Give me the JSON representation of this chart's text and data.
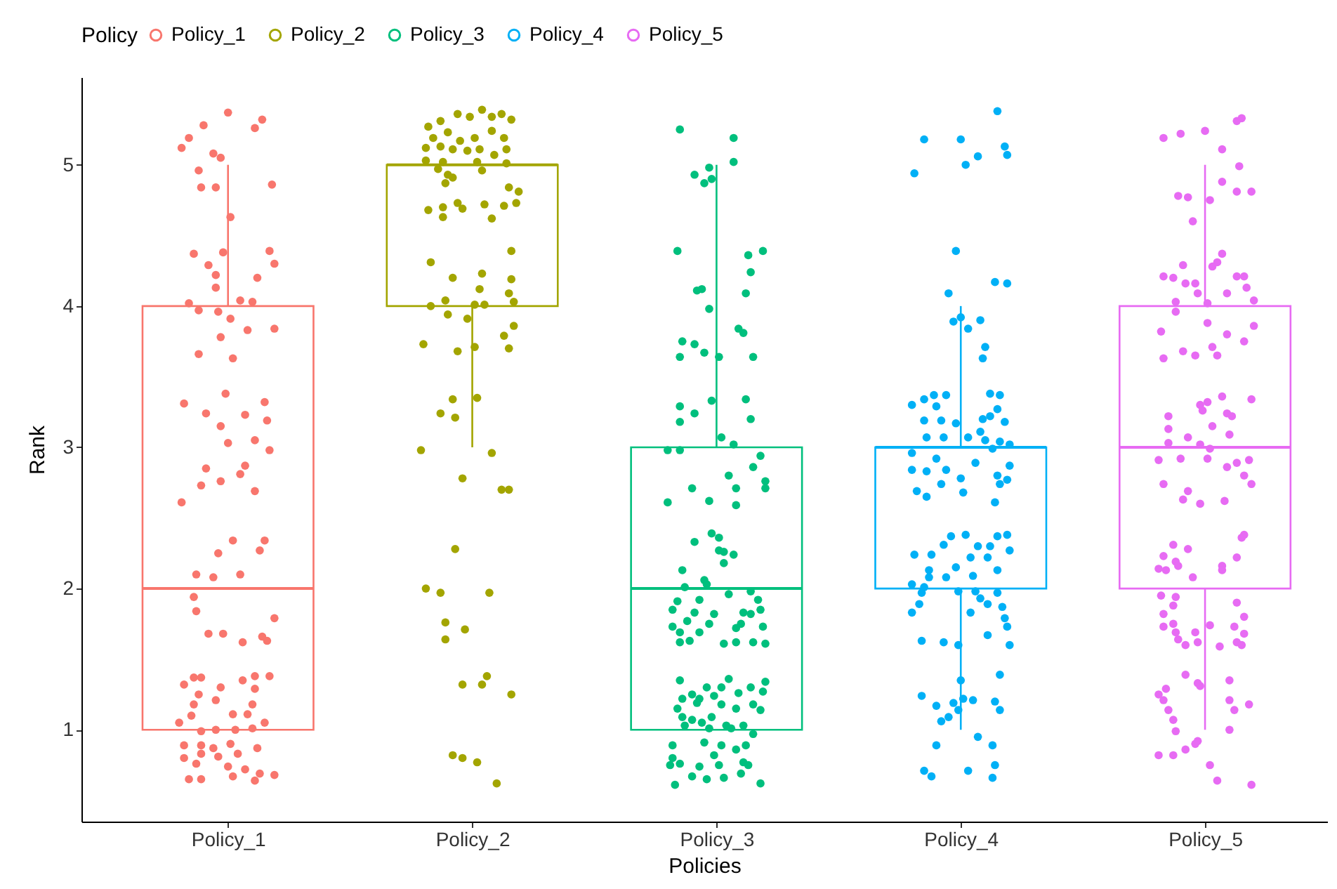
{
  "chart_data": {
    "type": "box",
    "xlabel": "Policies",
    "ylabel": "Rank",
    "legend_title": "Policy",
    "legend": "top",
    "marker": "circle",
    "xlim": [
      0.4,
      5.5
    ],
    "xticks": [
      {
        "value": 1,
        "label": "Policy_1"
      },
      {
        "value": 2,
        "label": "Policy_2"
      },
      {
        "value": 3,
        "label": "Policy_3"
      },
      {
        "value": 4,
        "label": "Policy_4"
      },
      {
        "value": 5,
        "label": "Policy_5"
      }
    ],
    "ylim": [
      0.35,
      5.62
    ],
    "yticks": [
      1,
      2,
      3,
      4,
      5
    ],
    "series": [
      {
        "name": "Policy_1",
        "color": "#f8766d",
        "x": [
          1
        ],
        "boxes": [
          {
            "low": 1,
            "q1": 1,
            "median": 2,
            "q3": 4,
            "high": 5
          }
        ]
      },
      {
        "name": "Policy_2",
        "color": "#a3a500",
        "x": [
          2
        ],
        "boxes": [
          {
            "low": 3,
            "q1": 4,
            "median": 5,
            "q3": 5,
            "high": 5
          }
        ]
      },
      {
        "name": "Policy_3",
        "color": "#00bf7d",
        "x": [
          3
        ],
        "boxes": [
          {
            "low": 1,
            "q1": 1,
            "median": 2,
            "q3": 3,
            "high": 5
          }
        ]
      },
      {
        "name": "Policy_4",
        "color": "#00b0f6",
        "x": [
          4
        ],
        "boxes": [
          {
            "low": 1,
            "q1": 2,
            "median": 3,
            "q3": 3,
            "high": 4
          }
        ]
      },
      {
        "name": "Policy_5",
        "color": "#e76bf3",
        "x": [
          5
        ],
        "boxes": [
          {
            "low": 1,
            "q1": 2,
            "median": 3,
            "q3": 4,
            "high": 5
          }
        ]
      },
      {
        "type": "scatter",
        "color": "#f8766d",
        "x": [
          1.0,
          0.9,
          1.14,
          1.11,
          0.84,
          0.81,
          0.94,
          0.97,
          0.88,
          1.18,
          0.89,
          0.95,
          1.01,
          0.86,
          0.98,
          1.17,
          1.19,
          0.92,
          0.95,
          1.12,
          0.95,
          0.84,
          1.05,
          1.1,
          0.88,
          0.96,
          1.01,
          1.08,
          1.19,
          0.97,
          0.88,
          1.02,
          0.99,
          0.82,
          1.15,
          0.91,
          1.07,
          1.16,
          0.97,
          1.0,
          1.11,
          1.17,
          0.91,
          1.07,
          1.05,
          0.97,
          0.89,
          1.11,
          0.81,
          1.02,
          1.15,
          0.96,
          1.13,
          0.87,
          0.94,
          1.05,
          0.86,
          0.87,
          1.19,
          0.92,
          0.98,
          1.06,
          1.14,
          1.16,
          0.86,
          0.89,
          0.82,
          0.97,
          1.06,
          1.11,
          1.17,
          0.88,
          1.11,
          0.95,
          0.86,
          1.1,
          1.02,
          1.08,
          0.85,
          0.8,
          1.15,
          0.89,
          0.95,
          1.03,
          1.1,
          0.82,
          0.89,
          1.01,
          1.12,
          0.94,
          0.89,
          1.04,
          0.82,
          0.96,
          0.87,
          1.0,
          0.84,
          0.89,
          1.02,
          1.07,
          1.13,
          1.19,
          1.11
        ],
        "values": [
          5.37,
          5.28,
          5.32,
          5.26,
          5.19,
          5.12,
          5.08,
          5.05,
          4.96,
          4.86,
          4.84,
          4.84,
          4.63,
          4.37,
          4.38,
          4.39,
          4.3,
          4.29,
          4.22,
          4.2,
          4.13,
          4.02,
          4.04,
          4.03,
          3.97,
          3.96,
          3.91,
          3.83,
          3.84,
          3.78,
          3.66,
          3.63,
          3.38,
          3.31,
          3.32,
          3.24,
          3.23,
          3.19,
          3.15,
          3.03,
          3.05,
          2.98,
          2.85,
          2.87,
          2.81,
          2.76,
          2.73,
          2.69,
          2.61,
          2.34,
          2.34,
          2.25,
          2.27,
          2.1,
          2.08,
          2.1,
          1.94,
          1.84,
          1.79,
          1.68,
          1.68,
          1.62,
          1.66,
          1.63,
          1.37,
          1.37,
          1.32,
          1.3,
          1.35,
          1.38,
          1.38,
          1.25,
          1.29,
          1.21,
          1.18,
          1.18,
          1.11,
          1.11,
          1.1,
          1.05,
          1.05,
          0.99,
          1.0,
          1.0,
          1.01,
          0.89,
          0.89,
          0.9,
          0.87,
          0.87,
          0.83,
          0.83,
          0.8,
          0.81,
          0.76,
          0.74,
          0.65,
          0.65,
          0.67,
          0.72,
          0.69,
          0.68,
          0.64
        ]
      },
      {
        "type": "scatter",
        "color": "#a3a500",
        "x": [
          1.94,
          2.04,
          1.99,
          2.12,
          1.87,
          1.82,
          2.08,
          2.16,
          1.9,
          2.08,
          1.84,
          1.95,
          2.01,
          2.13,
          1.81,
          1.87,
          1.92,
          1.98,
          2.03,
          2.14,
          2.09,
          1.81,
          1.88,
          2.02,
          2.14,
          1.86,
          1.9,
          2.04,
          1.92,
          1.89,
          2.15,
          2.19,
          1.82,
          1.88,
          1.94,
          1.96,
          2.05,
          2.13,
          2.18,
          1.88,
          2.08,
          1.83,
          2.16,
          1.92,
          2.04,
          2.03,
          2.16,
          2.15,
          2.17,
          1.83,
          1.89,
          2.01,
          2.05,
          1.9,
          1.98,
          2.17,
          2.13,
          1.8,
          1.94,
          2.01,
          2.15,
          1.92,
          2.02,
          1.87,
          1.93,
          1.79,
          2.08,
          1.96,
          2.12,
          2.15,
          1.93,
          1.81,
          1.87,
          2.07,
          1.89,
          1.97,
          1.89,
          1.96,
          2.04,
          2.06,
          2.16,
          1.92,
          1.96,
          2.02,
          2.1
        ],
        "values": [
          5.36,
          5.39,
          5.34,
          5.36,
          5.31,
          5.27,
          5.34,
          5.32,
          5.23,
          5.24,
          5.19,
          5.17,
          5.19,
          5.19,
          5.12,
          5.13,
          5.11,
          5.1,
          5.11,
          5.11,
          5.07,
          5.03,
          5.02,
          5.02,
          5.01,
          4.97,
          4.93,
          4.96,
          4.91,
          4.87,
          4.84,
          4.81,
          4.68,
          4.7,
          4.73,
          4.69,
          4.72,
          4.71,
          4.73,
          4.63,
          4.62,
          4.31,
          4.39,
          4.2,
          4.23,
          4.12,
          4.19,
          4.09,
          4.03,
          4.0,
          4.04,
          4.01,
          4.01,
          3.94,
          3.91,
          3.86,
          3.79,
          3.73,
          3.68,
          3.71,
          3.7,
          3.34,
          3.35,
          3.24,
          3.21,
          2.98,
          2.96,
          2.78,
          2.7,
          2.7,
          2.28,
          2.0,
          1.97,
          1.97,
          1.76,
          1.71,
          1.64,
          1.32,
          1.32,
          1.38,
          1.25,
          0.82,
          0.8,
          0.77,
          0.62
        ]
      },
      {
        "type": "scatter",
        "color": "#00bf7d",
        "x": [
          2.85,
          3.07,
          3.07,
          2.91,
          2.97,
          2.95,
          2.98,
          2.84,
          3.13,
          3.19,
          3.14,
          2.92,
          2.94,
          3.12,
          2.97,
          3.09,
          3.11,
          2.86,
          2.91,
          2.85,
          2.95,
          3.01,
          3.15,
          2.85,
          2.91,
          2.85,
          2.98,
          3.12,
          3.14,
          3.02,
          3.07,
          2.8,
          2.85,
          3.18,
          3.15,
          3.05,
          2.9,
          3.08,
          3.2,
          3.2,
          2.8,
          2.97,
          3.08,
          2.98,
          3.01,
          2.91,
          3.01,
          3.03,
          3.07,
          3.03,
          2.86,
          2.95,
          2.87,
          2.96,
          3.14,
          3.05,
          2.84,
          2.93,
          3.17,
          2.82,
          3.11,
          3.18,
          2.91,
          2.99,
          3.14,
          2.88,
          2.97,
          2.82,
          3.1,
          3.19,
          2.85,
          2.93,
          3.08,
          2.85,
          2.89,
          3.03,
          3.08,
          3.15,
          3.2,
          2.85,
          3.05,
          3.2,
          2.96,
          3.02,
          2.9,
          2.86,
          2.93,
          2.99,
          3.09,
          3.14,
          3.19,
          2.84,
          2.92,
          3.02,
          3.08,
          3.15,
          3.18,
          2.86,
          2.9,
          2.98,
          2.87,
          2.94,
          3.04,
          3.11,
          2.97,
          3.06,
          3.15,
          2.82,
          2.95,
          3.02,
          3.08,
          3.12,
          2.99,
          2.82,
          3.01,
          2.81,
          2.85,
          2.93,
          3.11,
          3.13,
          2.9,
          2.96,
          3.03,
          3.1,
          2.83,
          3.18
        ],
        "values": [
          5.25,
          5.19,
          5.02,
          4.93,
          4.98,
          4.87,
          4.9,
          4.39,
          4.36,
          4.39,
          4.24,
          4.11,
          4.12,
          4.09,
          3.98,
          3.84,
          3.81,
          3.75,
          3.73,
          3.64,
          3.67,
          3.64,
          3.64,
          3.29,
          3.24,
          3.18,
          3.33,
          3.34,
          3.2,
          3.07,
          3.02,
          2.98,
          2.98,
          2.94,
          2.86,
          2.8,
          2.71,
          2.71,
          2.76,
          2.71,
          2.61,
          2.62,
          2.59,
          2.39,
          2.36,
          2.33,
          2.27,
          2.26,
          2.24,
          2.18,
          2.13,
          2.06,
          2.01,
          2.03,
          1.98,
          1.96,
          1.91,
          1.92,
          1.92,
          1.85,
          1.83,
          1.85,
          1.83,
          1.82,
          1.82,
          1.77,
          1.75,
          1.73,
          1.75,
          1.73,
          1.69,
          1.69,
          1.72,
          1.62,
          1.63,
          1.61,
          1.62,
          1.62,
          1.61,
          1.35,
          1.36,
          1.34,
          1.3,
          1.3,
          1.25,
          1.22,
          1.22,
          1.24,
          1.26,
          1.3,
          1.27,
          1.15,
          1.19,
          1.18,
          1.15,
          1.18,
          1.14,
          1.09,
          1.07,
          1.09,
          1.03,
          1.05,
          1.03,
          1.03,
          1.01,
          1.01,
          0.97,
          0.89,
          0.91,
          0.89,
          0.86,
          0.89,
          0.82,
          0.8,
          0.75,
          0.75,
          0.76,
          0.74,
          0.77,
          0.75,
          0.67,
          0.65,
          0.66,
          0.69,
          0.61,
          0.62
        ]
      },
      {
        "type": "scatter",
        "color": "#00b0f6",
        "x": [
          4.15,
          3.85,
          4.0,
          4.18,
          4.19,
          4.07,
          4.02,
          3.81,
          3.98,
          4.14,
          4.19,
          3.95,
          4.0,
          3.97,
          4.08,
          4.03,
          4.1,
          4.09,
          3.8,
          3.85,
          3.89,
          3.94,
          4.12,
          4.16,
          3.9,
          4.15,
          3.85,
          3.92,
          3.98,
          4.09,
          4.12,
          4.18,
          3.86,
          3.93,
          4.03,
          4.08,
          4.1,
          4.16,
          4.2,
          4.13,
          3.8,
          3.9,
          3.8,
          3.86,
          3.94,
          4.0,
          4.06,
          4.15,
          4.2,
          4.19,
          3.82,
          3.92,
          4.01,
          4.16,
          3.86,
          4.14,
          3.96,
          4.02,
          4.15,
          4.19,
          3.93,
          4.07,
          4.12,
          3.81,
          3.88,
          4.04,
          4.11,
          4.2,
          3.87,
          3.98,
          4.15,
          3.87,
          3.94,
          4.05,
          3.8,
          3.85,
          3.99,
          4.06,
          4.15,
          3.84,
          4.08,
          3.83,
          4.11,
          4.17,
          3.8,
          4.04,
          4.18,
          4.19,
          4.2,
          3.84,
          3.93,
          3.99,
          4.11,
          4.0,
          4.16,
          3.84,
          3.9,
          3.97,
          4.05,
          4.14,
          4.01,
          3.95,
          3.92,
          3.99,
          4.16,
          4.07,
          3.9,
          4.13,
          3.85,
          3.88,
          4.03,
          4.14,
          4.13
        ],
        "values": [
          5.38,
          5.18,
          5.18,
          5.13,
          5.07,
          5.06,
          5.0,
          4.94,
          4.39,
          4.17,
          4.16,
          4.09,
          3.92,
          3.89,
          3.9,
          3.84,
          3.71,
          3.63,
          3.3,
          3.34,
          3.37,
          3.37,
          3.38,
          3.37,
          3.29,
          3.27,
          3.19,
          3.19,
          3.17,
          3.2,
          3.22,
          3.18,
          3.07,
          3.07,
          3.07,
          3.11,
          3.05,
          3.04,
          3.02,
          2.99,
          2.96,
          2.92,
          2.84,
          2.83,
          2.84,
          2.78,
          2.89,
          2.8,
          2.87,
          2.77,
          2.69,
          2.74,
          2.68,
          2.74,
          2.65,
          2.61,
          2.37,
          2.38,
          2.37,
          2.38,
          2.31,
          2.3,
          2.3,
          2.24,
          2.24,
          2.22,
          2.22,
          2.27,
          2.13,
          2.15,
          2.13,
          2.08,
          2.08,
          2.09,
          2.03,
          2.01,
          1.98,
          1.98,
          1.97,
          1.97,
          1.93,
          1.89,
          1.89,
          1.87,
          1.83,
          1.83,
          1.79,
          1.73,
          1.6,
          1.63,
          1.62,
          1.6,
          1.67,
          1.35,
          1.39,
          1.24,
          1.17,
          1.19,
          1.21,
          1.2,
          1.22,
          1.09,
          1.06,
          1.14,
          1.14,
          0.95,
          0.89,
          0.89,
          0.71,
          0.67,
          0.71,
          0.75,
          0.66
        ]
      },
      {
        "type": "scatter",
        "color": "#e76bf3",
        "x": [
          4.83,
          4.9,
          5.0,
          5.13,
          5.15,
          5.07,
          5.14,
          5.07,
          5.13,
          5.19,
          4.89,
          4.93,
          5.02,
          4.95,
          5.07,
          5.05,
          5.03,
          4.91,
          4.83,
          4.87,
          4.92,
          4.96,
          5.13,
          5.16,
          5.17,
          5.09,
          4.97,
          4.88,
          5.01,
          5.2,
          4.88,
          5.01,
          5.2,
          4.82,
          5.09,
          5.16,
          4.83,
          4.91,
          5.03,
          4.96,
          5.05,
          5.07,
          5.19,
          4.98,
          5.01,
          4.99,
          4.85,
          5.09,
          5.11,
          4.85,
          5.03,
          4.93,
          5.1,
          4.85,
          4.98,
          5.02,
          4.81,
          4.9,
          5.01,
          5.09,
          5.13,
          5.18,
          5.16,
          5.19,
          4.83,
          4.93,
          4.91,
          4.98,
          5.08,
          5.16,
          5.15,
          4.87,
          4.93,
          4.83,
          4.88,
          4.81,
          4.84,
          4.89,
          5.07,
          5.07,
          5.13,
          4.95,
          4.82,
          4.88,
          4.87,
          5.13,
          4.83,
          5.16,
          4.83,
          4.87,
          5.02,
          5.12,
          4.88,
          4.96,
          5.16,
          4.89,
          4.97,
          4.92,
          5.06,
          5.13,
          5.15,
          4.92,
          4.98,
          4.97,
          5.1,
          4.84,
          4.81,
          4.83,
          5.1,
          5.18,
          4.85,
          5.12,
          4.87,
          4.88,
          5.1,
          4.97,
          4.92,
          4.96,
          4.81,
          4.87,
          5.02,
          5.05,
          5.19
        ],
        "values": [
          5.19,
          5.22,
          5.24,
          5.31,
          5.33,
          5.11,
          4.99,
          4.88,
          4.81,
          4.81,
          4.78,
          4.77,
          4.75,
          4.6,
          4.37,
          4.31,
          4.28,
          4.29,
          4.21,
          4.2,
          4.16,
          4.16,
          4.21,
          4.21,
          4.13,
          4.09,
          4.09,
          4.03,
          4.02,
          4.04,
          3.96,
          3.88,
          3.86,
          3.82,
          3.8,
          3.75,
          3.63,
          3.68,
          3.71,
          3.65,
          3.65,
          3.36,
          3.34,
          3.3,
          3.32,
          3.26,
          3.22,
          3.24,
          3.22,
          3.13,
          3.15,
          3.07,
          3.09,
          3.03,
          3.02,
          2.99,
          2.91,
          2.92,
          2.92,
          2.86,
          2.89,
          2.91,
          2.8,
          2.74,
          2.74,
          2.69,
          2.63,
          2.6,
          2.62,
          2.38,
          2.36,
          2.31,
          2.28,
          2.23,
          2.19,
          2.14,
          2.13,
          2.16,
          2.16,
          2.13,
          2.22,
          2.08,
          1.95,
          1.94,
          1.88,
          1.9,
          1.82,
          1.8,
          1.73,
          1.75,
          1.74,
          1.73,
          1.69,
          1.69,
          1.68,
          1.64,
          1.62,
          1.6,
          1.59,
          1.62,
          1.6,
          1.39,
          1.31,
          1.33,
          1.35,
          1.29,
          1.25,
          1.21,
          1.21,
          1.18,
          1.14,
          1.14,
          1.07,
          0.99,
          1.0,
          0.92,
          0.86,
          0.9,
          0.82,
          0.82,
          0.75,
          0.64,
          0.61
        ]
      }
    ]
  }
}
